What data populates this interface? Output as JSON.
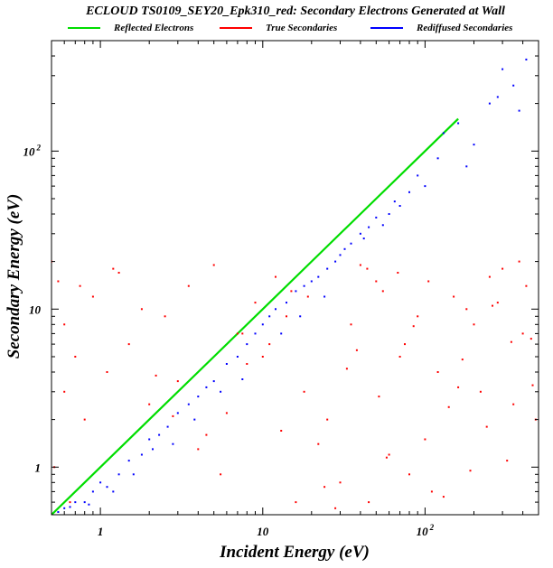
{
  "chart_data": {
    "type": "scatter",
    "title": "ECLOUD TS0109_SEY20_Epk310_red: Secondary Electrons Generated at Wall",
    "xlabel": "Incident Energy (eV)",
    "ylabel": "Secondary Energy (eV)",
    "xscale": "log",
    "yscale": "log",
    "xlim": [
      0.5,
      500
    ],
    "ylim": [
      0.5,
      500
    ],
    "grid": false,
    "legend_position": "top",
    "x_tick_labels": [
      {
        "value": 1,
        "base": "1",
        "exp": ""
      },
      {
        "value": 10,
        "base": "10",
        "exp": ""
      },
      {
        "value": 100,
        "base": "10",
        "exp": "2"
      }
    ],
    "y_tick_labels": [
      {
        "value": 1,
        "base": "1",
        "exp": ""
      },
      {
        "value": 10,
        "base": "10",
        "exp": ""
      },
      {
        "value": 100,
        "base": "10",
        "exp": "2"
      }
    ],
    "series": [
      {
        "name": "Reflected Electrons",
        "color": "#00dd00",
        "marker": "line",
        "x": [
          0.5,
          0.8,
          1,
          2,
          5,
          10,
          20,
          50,
          100,
          160
        ],
        "y": [
          0.5,
          0.8,
          1,
          2,
          5,
          10,
          20,
          50,
          100,
          160
        ]
      },
      {
        "name": "True Secondaries",
        "color": "#ff0000",
        "marker": "dot",
        "x": [
          0.5,
          0.55,
          0.6,
          0.7,
          0.9,
          1.2,
          1.5,
          2.5,
          3.5,
          5,
          7,
          9,
          12,
          15,
          0.6,
          0.8,
          1.1,
          2,
          3,
          4.5,
          6,
          8,
          11,
          14,
          18,
          25,
          35,
          50,
          70,
          100,
          150,
          220,
          300,
          400,
          480,
          30,
          45,
          60,
          80,
          120,
          180,
          250,
          350,
          40,
          55,
          75,
          110,
          160,
          200,
          280,
          320,
          420,
          22,
          28,
          38,
          52,
          68,
          90,
          130,
          170,
          240,
          380,
          450,
          0.52,
          0.65,
          0.75,
          1.3,
          1.8,
          2.2,
          2.8,
          4,
          5.5,
          7.5,
          10,
          13,
          16,
          19,
          24,
          33,
          44,
          58,
          85,
          105,
          140,
          190,
          260,
          340,
          460
        ],
        "y": [
          20,
          15,
          8,
          5,
          12,
          18,
          6,
          9,
          14,
          19,
          7,
          11,
          16,
          13,
          3,
          2,
          4,
          2.5,
          3.5,
          1.6,
          2.2,
          4.5,
          6,
          9,
          3,
          2,
          8,
          15,
          5,
          1.5,
          12,
          3,
          18,
          7,
          2,
          0.8,
          0.6,
          1.2,
          0.9,
          4,
          10,
          16,
          2.5,
          19,
          13,
          6,
          0.7,
          3.2,
          8,
          11,
          1.1,
          14,
          1.4,
          0.55,
          5.5,
          2.8,
          17,
          9,
          0.65,
          4.8,
          1.8,
          20,
          6.5,
          1,
          0.6,
          14,
          17,
          10,
          3.8,
          2.1,
          1.3,
          0.9,
          7,
          5,
          1.7,
          0.6,
          12,
          0.75,
          4.2,
          18,
          1.15,
          7.8,
          15,
          2.4,
          0.95,
          10.5,
          6.2,
          3.3
        ]
      },
      {
        "name": "Rediffused Secondaries",
        "color": "#0000ff",
        "marker": "dot",
        "x": [
          0.55,
          0.6,
          0.7,
          0.8,
          0.9,
          1,
          1.1,
          1.3,
          1.5,
          1.8,
          2,
          2.3,
          2.6,
          3,
          3.5,
          4,
          4.5,
          5,
          6,
          7,
          8,
          9,
          10,
          11,
          12,
          14,
          16,
          18,
          20,
          22,
          25,
          28,
          30,
          35,
          40,
          45,
          50,
          60,
          70,
          80,
          100,
          130,
          160,
          200,
          250,
          300,
          350,
          420,
          0.65,
          0.85,
          1.2,
          1.6,
          2.1,
          2.8,
          3.8,
          5.5,
          7.5,
          13,
          17,
          24,
          32,
          42,
          55,
          65,
          90,
          120,
          180,
          280,
          380
        ],
        "y": [
          0.52,
          0.55,
          0.6,
          0.6,
          0.7,
          0.8,
          0.75,
          0.9,
          1.1,
          1.2,
          1.5,
          1.6,
          1.8,
          2.2,
          2.5,
          2.8,
          3.2,
          3.5,
          4.5,
          5,
          6,
          7,
          8,
          9,
          10,
          11,
          13,
          14,
          15,
          16,
          18,
          20,
          22,
          26,
          30,
          33,
          38,
          40,
          45,
          55,
          60,
          130,
          150,
          110,
          200,
          330,
          260,
          380,
          0.56,
          0.58,
          0.7,
          0.9,
          1.3,
          1.4,
          2,
          3,
          3.6,
          7,
          9,
          12,
          24,
          28,
          34,
          48,
          70,
          90,
          80,
          220,
          180
        ]
      }
    ]
  }
}
